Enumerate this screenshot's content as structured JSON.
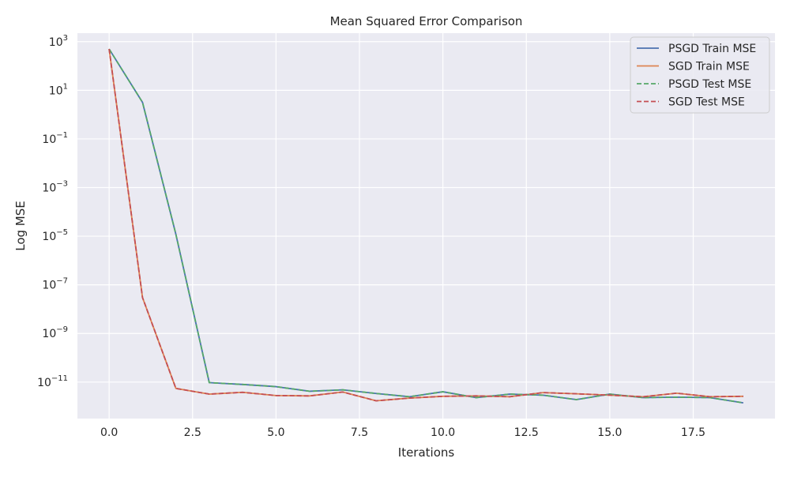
{
  "chart_data": {
    "type": "line",
    "title": "Mean Squared Error Comparison",
    "xlabel": "Iterations",
    "ylabel": "Log MSE",
    "yscale": "log",
    "xlim": [
      -0.95,
      19.95
    ],
    "ylim_log10": [
      -12.5,
      3.35
    ],
    "grid": true,
    "legend_position": "top-right",
    "x_ticks": [
      {
        "value": 0.0,
        "label": "0.0"
      },
      {
        "value": 2.5,
        "label": "2.5"
      },
      {
        "value": 5.0,
        "label": "5.0"
      },
      {
        "value": 7.5,
        "label": "7.5"
      },
      {
        "value": 10.0,
        "label": "10.0"
      },
      {
        "value": 12.5,
        "label": "12.5"
      },
      {
        "value": 15.0,
        "label": "15.0"
      },
      {
        "value": 17.5,
        "label": "17.5"
      }
    ],
    "y_ticks": [
      {
        "exp": 3,
        "base": "10",
        "sup": "3"
      },
      {
        "exp": 1,
        "base": "10",
        "sup": "1"
      },
      {
        "exp": -1,
        "base": "10",
        "sup": "−1"
      },
      {
        "exp": -3,
        "base": "10",
        "sup": "−3"
      },
      {
        "exp": -5,
        "base": "10",
        "sup": "−5"
      },
      {
        "exp": -7,
        "base": "10",
        "sup": "−7"
      },
      {
        "exp": -9,
        "base": "10",
        "sup": "−9"
      },
      {
        "exp": -11,
        "base": "10",
        "sup": "−11"
      }
    ],
    "x": [
      0,
      1,
      2,
      3,
      4,
      5,
      6,
      7,
      8,
      9,
      10,
      11,
      12,
      13,
      14,
      15,
      16,
      17,
      18,
      19
    ],
    "series": [
      {
        "name": "PSGD Train MSE",
        "color": "#4c72b0",
        "dashed": false,
        "values": [
          500,
          3.2,
          1.2e-05,
          9.5e-12,
          8e-12,
          6.5e-12,
          4.2e-12,
          4.8e-12,
          3.4e-12,
          2.5e-12,
          4e-12,
          2.3e-12,
          3.2e-12,
          2.9e-12,
          1.9e-12,
          3.2e-12,
          2.3e-12,
          2.4e-12,
          2.3e-12,
          1.4e-12
        ]
      },
      {
        "name": "SGD Train MSE",
        "color": "#dd8452",
        "dashed": false,
        "values": [
          500,
          3e-08,
          5.5e-12,
          3.2e-12,
          3.8e-12,
          2.8e-12,
          2.7e-12,
          3.9e-12,
          1.7e-12,
          2.2e-12,
          2.6e-12,
          2.7e-12,
          2.5e-12,
          3.7e-12,
          3.3e-12,
          2.9e-12,
          2.5e-12,
          3.5e-12,
          2.5e-12,
          2.6e-12
        ]
      },
      {
        "name": "PSGD Test MSE",
        "color": "#55a868",
        "dashed": true,
        "values": [
          500,
          3.2,
          1.2e-05,
          9.5e-12,
          8e-12,
          6.5e-12,
          4.2e-12,
          4.8e-12,
          3.4e-12,
          2.5e-12,
          4e-12,
          2.3e-12,
          3.2e-12,
          2.9e-12,
          1.9e-12,
          3.2e-12,
          2.3e-12,
          2.4e-12,
          2.3e-12,
          1.4e-12
        ]
      },
      {
        "name": "SGD Test MSE",
        "color": "#c44e52",
        "dashed": true,
        "values": [
          500,
          3e-08,
          5.5e-12,
          3.2e-12,
          3.8e-12,
          2.8e-12,
          2.7e-12,
          3.9e-12,
          1.7e-12,
          2.2e-12,
          2.6e-12,
          2.7e-12,
          2.5e-12,
          3.7e-12,
          3.3e-12,
          2.9e-12,
          2.5e-12,
          3.5e-12,
          2.5e-12,
          2.6e-12
        ]
      }
    ],
    "colors": {
      "plot_background": "#eaeaf2",
      "grid": "#ffffff",
      "text": "#262626"
    }
  }
}
